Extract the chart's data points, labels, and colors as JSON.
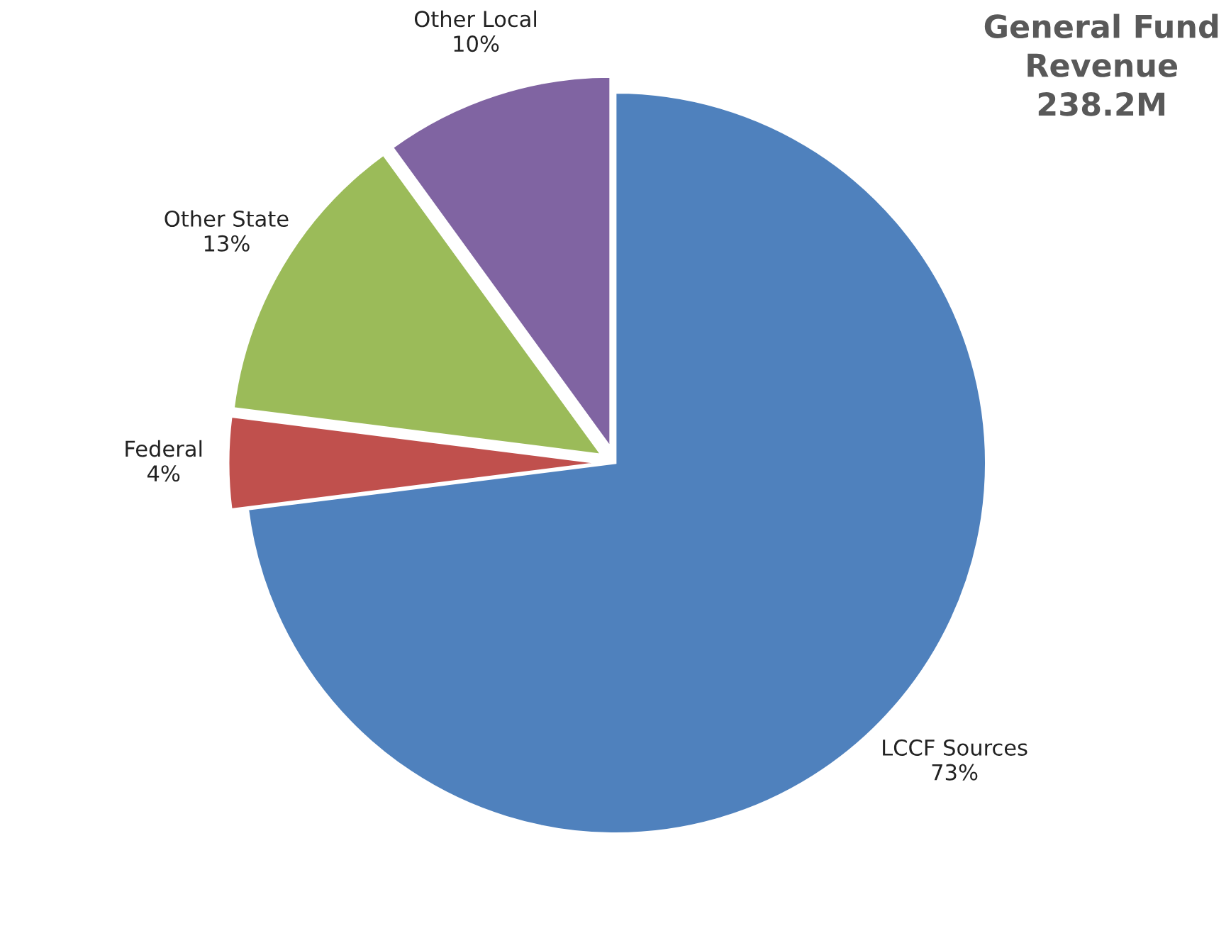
{
  "chart_data": {
    "type": "pie",
    "title": "General Fund\nRevenue\n238.2M",
    "categories": [
      "LCCF Sources",
      "Federal",
      "Other State",
      "Other Local"
    ],
    "values": [
      73,
      4,
      13,
      10
    ],
    "value_labels": [
      "73%",
      "4%",
      "13%",
      "10%"
    ],
    "colors": [
      "#4f81bd",
      "#c0504d",
      "#9bbb59",
      "#8064a2"
    ],
    "legend": false
  }
}
